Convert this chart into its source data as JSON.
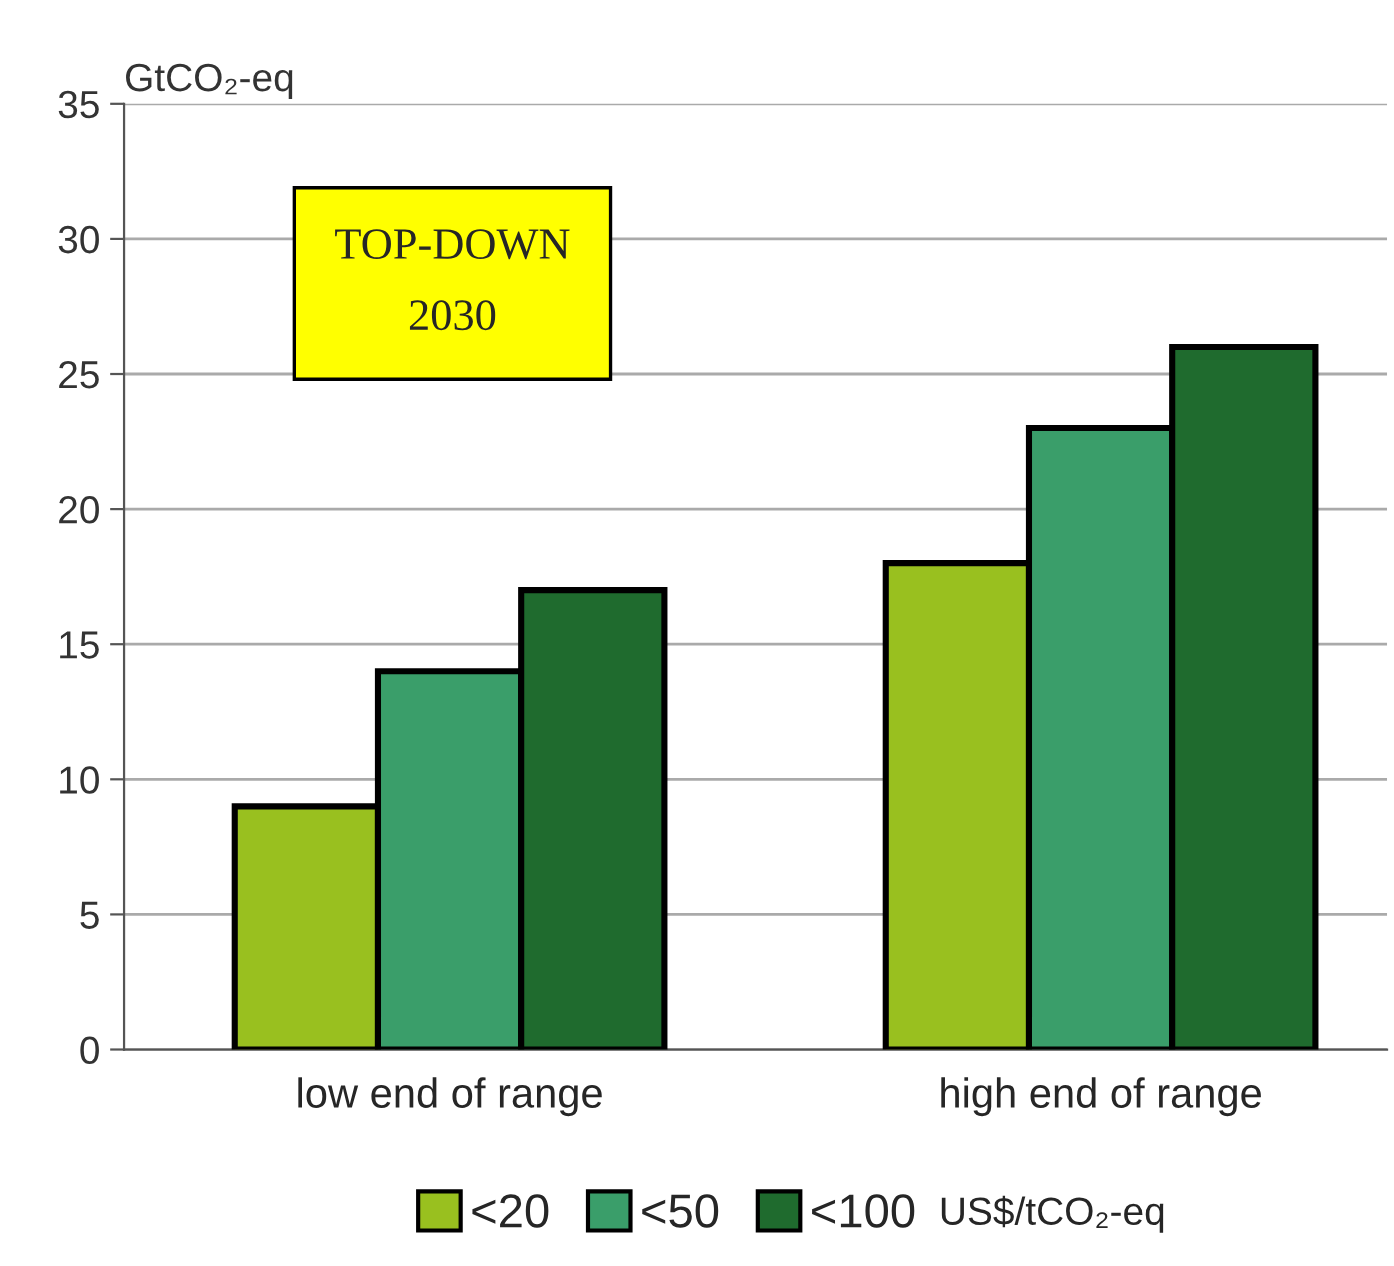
{
  "chart_data": {
    "type": "bar",
    "ylabel": "GtCO₂-eq",
    "legend_title": "US$/tCO₂-eq",
    "categories": [
      "low end of range",
      "high end of range"
    ],
    "series": [
      {
        "name": "<20",
        "color": "#99c01f",
        "values": [
          9,
          18
        ]
      },
      {
        "name": "<50",
        "color": "#3a9e6a",
        "values": [
          14,
          23
        ]
      },
      {
        "name": "<100",
        "color": "#1f6b2e",
        "values": [
          17,
          26
        ]
      }
    ],
    "ylim": [
      0,
      35
    ],
    "yticks": [
      0,
      5,
      10,
      15,
      20,
      25,
      30,
      35
    ],
    "grid": "y",
    "legend": "bottom",
    "annotations": [
      "TOP-DOWN\n2030"
    ]
  }
}
